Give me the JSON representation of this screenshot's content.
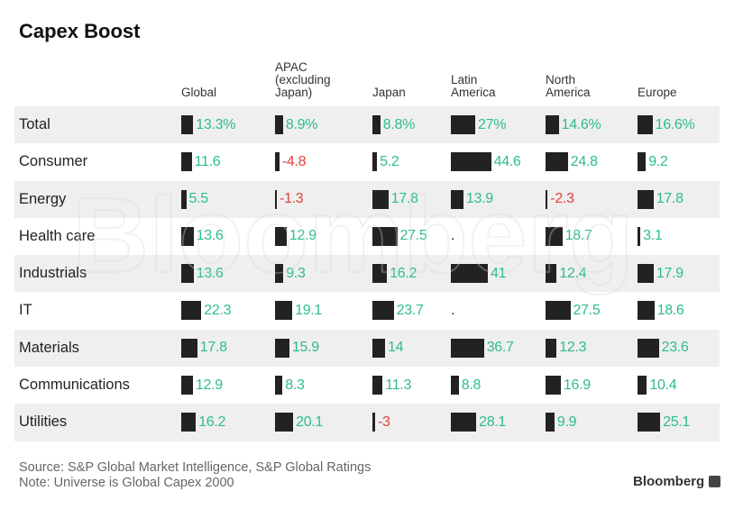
{
  "chart_data": {
    "type": "table",
    "title": "Capex Boost",
    "columns": [
      "Global",
      "APAC\n(excluding\nJapan)",
      "Japan",
      "Latin\nAmerica",
      "North\nAmerica",
      "Europe"
    ],
    "rows": [
      {
        "label": "Total",
        "values": [
          13.3,
          8.9,
          8.8,
          27,
          14.6,
          16.6
        ],
        "display": [
          "13.3%",
          "8.9%",
          "8.8%",
          "27%",
          "14.6%",
          "16.6%"
        ]
      },
      {
        "label": "Consumer",
        "values": [
          11.6,
          -4.8,
          5.2,
          44.6,
          24.8,
          9.2
        ],
        "display": [
          "11.6",
          "-4.8",
          "5.2",
          "44.6",
          "24.8",
          "9.2"
        ]
      },
      {
        "label": "Energy",
        "values": [
          5.5,
          -1.3,
          17.8,
          13.9,
          -2.3,
          17.8
        ],
        "display": [
          "5.5",
          "-1.3",
          "17.8",
          "13.9",
          "-2.3",
          "17.8"
        ]
      },
      {
        "label": "Health care",
        "values": [
          13.6,
          12.9,
          27.5,
          null,
          18.7,
          3.1
        ],
        "display": [
          "13.6",
          "12.9",
          "27.5",
          ".",
          "18.7",
          "3.1"
        ]
      },
      {
        "label": "Industrials",
        "values": [
          13.6,
          9.3,
          16.2,
          41,
          12.4,
          17.9
        ],
        "display": [
          "13.6",
          "9.3",
          "16.2",
          "41",
          "12.4",
          "17.9"
        ]
      },
      {
        "label": "IT",
        "values": [
          22.3,
          19.1,
          23.7,
          null,
          27.5,
          18.6
        ],
        "display": [
          "22.3",
          "19.1",
          "23.7",
          ".",
          "27.5",
          "18.6"
        ]
      },
      {
        "label": "Materials",
        "values": [
          17.8,
          15.9,
          14,
          36.7,
          12.3,
          23.6
        ],
        "display": [
          "17.8",
          "15.9",
          "14",
          "36.7",
          "12.3",
          "23.6"
        ]
      },
      {
        "label": "Communications",
        "values": [
          12.9,
          8.3,
          11.3,
          8.8,
          16.9,
          10.4
        ],
        "display": [
          "12.9",
          "8.3",
          "11.3",
          "8.8",
          "16.9",
          "10.4"
        ]
      },
      {
        "label": "Utilities",
        "values": [
          16.2,
          20.1,
          -3,
          28.1,
          9.9,
          25.1
        ],
        "display": [
          "16.2",
          "20.1",
          "-3",
          "28.1",
          "9.9",
          "25.1"
        ]
      }
    ],
    "colors": {
      "bar": "#222222",
      "positive": "#2dbd8b",
      "negative": "#e2403a",
      "stripe": "#efefef"
    }
  },
  "footer": {
    "source": "Source: S&P Global Market Intelligence, S&P Global Ratings",
    "note": "Note: Universe is Global Capex 2000"
  },
  "brand": "Bloomberg",
  "watermark": "Bloomberg"
}
